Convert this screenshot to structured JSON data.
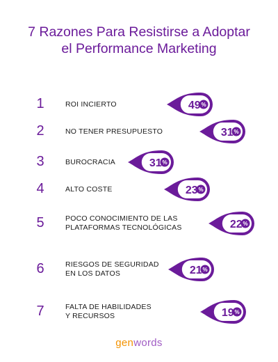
{
  "title": {
    "line1": "7 Razones Para Resistirse a Adoptar",
    "line2": "el Performance Marketing"
  },
  "colors": {
    "accent": "#6b1b9a",
    "text": "#1a1a1a",
    "brand_orange": "#f39200",
    "brand_purple": "#a05cc4"
  },
  "chart_data": {
    "type": "table",
    "rows": [
      {
        "rank": "1",
        "label_lines": [
          "ROI INCIERTO"
        ],
        "value": 49,
        "unit": "%"
      },
      {
        "rank": "2",
        "label_lines": [
          "NO TENER PRESUPUESTO"
        ],
        "value": 31,
        "unit": "%"
      },
      {
        "rank": "3",
        "label_lines": [
          "BUROCRACIA"
        ],
        "value": 31,
        "unit": "%"
      },
      {
        "rank": "4",
        "label_lines": [
          "ALTO COSTE"
        ],
        "value": 23,
        "unit": "%"
      },
      {
        "rank": "5",
        "label_lines": [
          "POCO CONOCIMIENTO DE LAS",
          "PLATAFORMAS TECNOLÓGICAS"
        ],
        "value": 22,
        "unit": "%"
      },
      {
        "rank": "6",
        "label_lines": [
          "RIESGOS DE SEGURIDAD",
          "EN LOS DATOS"
        ],
        "value": 21,
        "unit": "%"
      },
      {
        "rank": "7",
        "label_lines": [
          "FALTA DE HABILIDADES",
          "Y RECURSOS"
        ],
        "value": 19,
        "unit": "%"
      }
    ]
  },
  "brand": {
    "part1": "gen",
    "part2": "words"
  }
}
